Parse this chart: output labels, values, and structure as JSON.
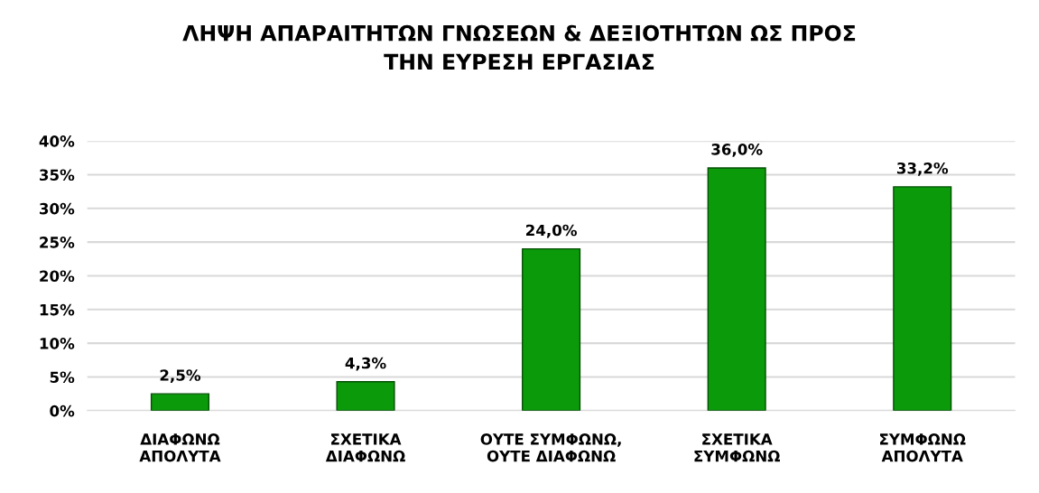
{
  "chart_data": {
    "type": "bar",
    "title": "ΛΗΨΗ ΑΠΑΡΑΙΤΗΤΩΝ ΓΝΩΣΕΩΝ & ΔΕΞΙΟΤΗΤΩΝ ΩΣ ΠΡΟΣ\nΤΗΝ ΕΥΡΕΣΗ ΕΡΓΑΣΙΑΣ",
    "categories": [
      "ΔΙΑΦΩΝΩ\nΑΠΟΛΥΤΑ",
      "ΣΧΕΤΙΚΑ\nΔΙΑΦΩΝΩ",
      "ΟΥΤΕ ΣΥΜΦΩΝΩ,\nΟΥΤΕ ΔΙΑΦΩΝΩ",
      "ΣΧΕΤΙΚΑ\nΣΥΜΦΩΝΩ",
      "ΣΥΜΦΩΝΩ\nΑΠΟΛΥΤΑ"
    ],
    "values": [
      2.5,
      4.3,
      24.0,
      36.0,
      33.2
    ],
    "value_labels": [
      "2,5%",
      "4,3%",
      "24,0%",
      "36,0%",
      "33,2%"
    ],
    "color": "#0a9a0a",
    "ylim": [
      0,
      40
    ],
    "yticks": [
      {
        "value": 0,
        "label": "0%"
      },
      {
        "value": 5,
        "label": "5%"
      },
      {
        "value": 10,
        "label": "10%"
      },
      {
        "value": 15,
        "label": "15%"
      },
      {
        "value": 20,
        "label": "20%"
      },
      {
        "value": 25,
        "label": "25%"
      },
      {
        "value": 30,
        "label": "30%"
      },
      {
        "value": 35,
        "label": "35%"
      },
      {
        "value": 40,
        "label": "40%"
      }
    ],
    "grid": "y"
  }
}
